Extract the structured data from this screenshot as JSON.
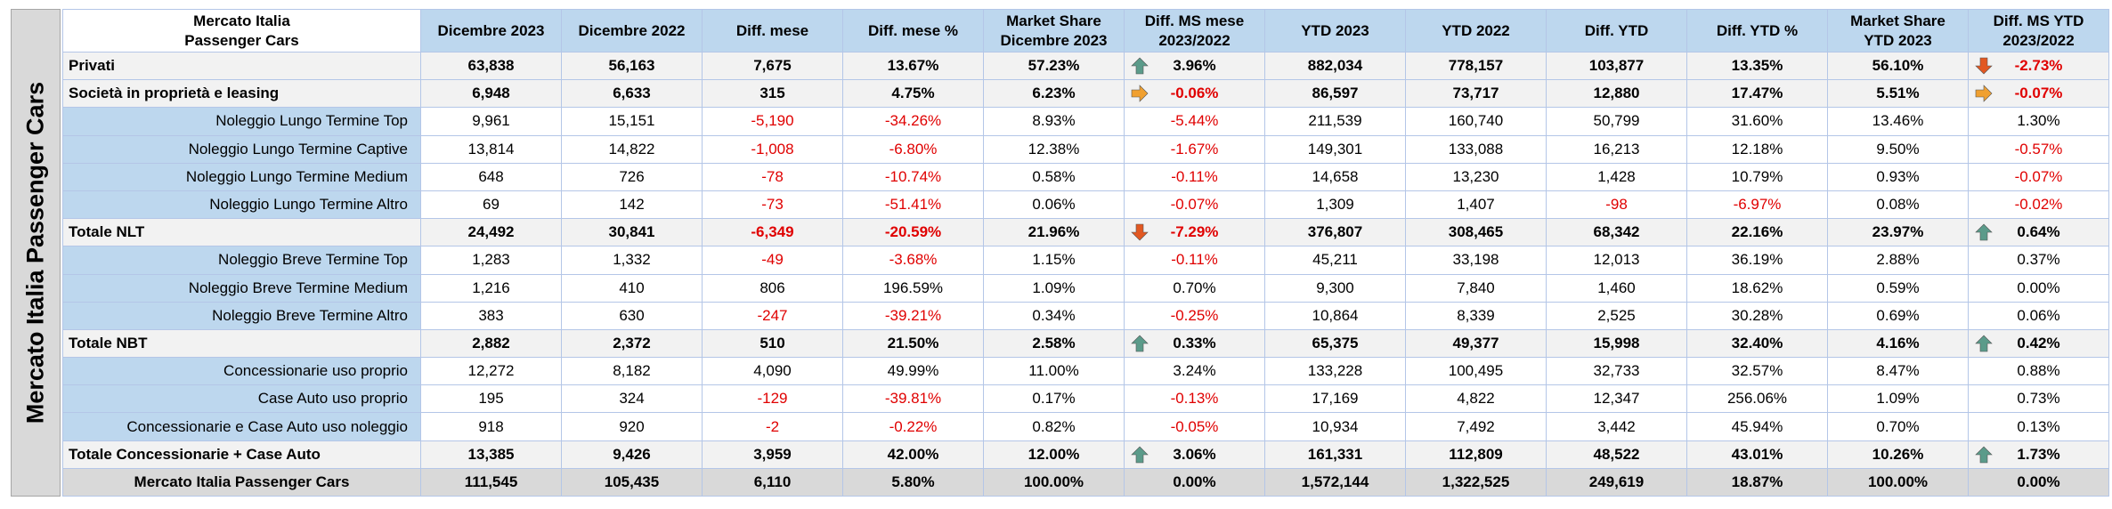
{
  "side_title": "Mercato Italia Passenger Cars",
  "header": {
    "title_line1": "Mercato Italia",
    "title_line2": "Passenger Cars",
    "columns": [
      [
        "Dicembre 2023"
      ],
      [
        "Dicembre 2022"
      ],
      [
        "Diff. mese"
      ],
      [
        "Diff. mese %"
      ],
      [
        "Market Share",
        "Dicembre 2023"
      ],
      [
        "Diff. MS mese",
        "2023/2022"
      ],
      [
        "YTD 2023"
      ],
      [
        "YTD 2022"
      ],
      [
        "Diff. YTD"
      ],
      [
        "Diff. YTD %"
      ],
      [
        "Market Share",
        "YTD 2023"
      ],
      [
        "Diff. MS YTD",
        "2023/2022"
      ]
    ]
  },
  "colors": {
    "header_bg": "#bdd7ee",
    "negative": "#e00000",
    "arrow_up": "#5b9b8a",
    "arrow_down": "#e25822",
    "arrow_right": "#f0a030"
  },
  "rows": [
    {
      "label": "Privati",
      "type": "total",
      "arrow_ms": "up-arrow-icon",
      "arrow_ytd": "down-arrow-icon",
      "values": [
        "63,838",
        "56,163",
        "7,675",
        "13.67%",
        "57.23%",
        "3.96%",
        "882,034",
        "778,157",
        "103,877",
        "13.35%",
        "56.10%",
        "-2.73%"
      ]
    },
    {
      "label": "Società in proprietà e leasing",
      "type": "total",
      "arrow_ms": "right-arrow-icon",
      "arrow_ytd": "right-arrow-icon",
      "values": [
        "6,948",
        "6,633",
        "315",
        "4.75%",
        "6.23%",
        "-0.06%",
        "86,597",
        "73,717",
        "12,880",
        "17.47%",
        "5.51%",
        "-0.07%"
      ]
    },
    {
      "label": "Noleggio Lungo Termine Top",
      "type": "sub",
      "values": [
        "9,961",
        "15,151",
        "-5,190",
        "-34.26%",
        "8.93%",
        "-5.44%",
        "211,539",
        "160,740",
        "50,799",
        "31.60%",
        "13.46%",
        "1.30%"
      ]
    },
    {
      "label": "Noleggio Lungo Termine Captive",
      "type": "sub",
      "values": [
        "13,814",
        "14,822",
        "-1,008",
        "-6.80%",
        "12.38%",
        "-1.67%",
        "149,301",
        "133,088",
        "16,213",
        "12.18%",
        "9.50%",
        "-0.57%"
      ]
    },
    {
      "label": "Noleggio Lungo Termine Medium",
      "type": "sub",
      "values": [
        "648",
        "726",
        "-78",
        "-10.74%",
        "0.58%",
        "-0.11%",
        "14,658",
        "13,230",
        "1,428",
        "10.79%",
        "0.93%",
        "-0.07%"
      ]
    },
    {
      "label": "Noleggio Lungo Termine Altro",
      "type": "sub",
      "values": [
        "69",
        "142",
        "-73",
        "-51.41%",
        "0.06%",
        "-0.07%",
        "1,309",
        "1,407",
        "-98",
        "-6.97%",
        "0.08%",
        "-0.02%"
      ]
    },
    {
      "label": "Totale NLT",
      "type": "total",
      "arrow_ms": "down-arrow-icon",
      "arrow_ytd": "up-arrow-icon",
      "values": [
        "24,492",
        "30,841",
        "-6,349",
        "-20.59%",
        "21.96%",
        "-7.29%",
        "376,807",
        "308,465",
        "68,342",
        "22.16%",
        "23.97%",
        "0.64%"
      ]
    },
    {
      "label": "Noleggio Breve Termine Top",
      "type": "sub",
      "values": [
        "1,283",
        "1,332",
        "-49",
        "-3.68%",
        "1.15%",
        "-0.11%",
        "45,211",
        "33,198",
        "12,013",
        "36.19%",
        "2.88%",
        "0.37%"
      ]
    },
    {
      "label": "Noleggio Breve Termine Medium",
      "type": "sub",
      "values": [
        "1,216",
        "410",
        "806",
        "196.59%",
        "1.09%",
        "0.70%",
        "9,300",
        "7,840",
        "1,460",
        "18.62%",
        "0.59%",
        "0.00%"
      ]
    },
    {
      "label": "Noleggio Breve Termine Altro",
      "type": "sub",
      "values": [
        "383",
        "630",
        "-247",
        "-39.21%",
        "0.34%",
        "-0.25%",
        "10,864",
        "8,339",
        "2,525",
        "30.28%",
        "0.69%",
        "0.06%"
      ]
    },
    {
      "label": "Totale NBT",
      "type": "total",
      "arrow_ms": "up-arrow-icon",
      "arrow_ytd": "up-arrow-icon",
      "values": [
        "2,882",
        "2,372",
        "510",
        "21.50%",
        "2.58%",
        "0.33%",
        "65,375",
        "49,377",
        "15,998",
        "32.40%",
        "4.16%",
        "0.42%"
      ]
    },
    {
      "label": "Concessionarie uso proprio",
      "type": "sub",
      "values": [
        "12,272",
        "8,182",
        "4,090",
        "49.99%",
        "11.00%",
        "3.24%",
        "133,228",
        "100,495",
        "32,733",
        "32.57%",
        "8.47%",
        "0.88%"
      ]
    },
    {
      "label": "Case Auto uso proprio",
      "type": "sub",
      "values": [
        "195",
        "324",
        "-129",
        "-39.81%",
        "0.17%",
        "-0.13%",
        "17,169",
        "4,822",
        "12,347",
        "256.06%",
        "1.09%",
        "0.73%"
      ]
    },
    {
      "label": "Concessionarie e Case Auto uso noleggio",
      "type": "sub",
      "values": [
        "918",
        "920",
        "-2",
        "-0.22%",
        "0.82%",
        "-0.05%",
        "10,934",
        "7,492",
        "3,442",
        "45.94%",
        "0.70%",
        "0.13%"
      ]
    },
    {
      "label": "Totale Concessionarie + Case Auto",
      "type": "total",
      "arrow_ms": "up-arrow-icon",
      "arrow_ytd": "up-arrow-icon",
      "values": [
        "13,385",
        "9,426",
        "3,959",
        "42.00%",
        "12.00%",
        "3.06%",
        "161,331",
        "112,809",
        "48,522",
        "43.01%",
        "10.26%",
        "1.73%"
      ]
    },
    {
      "label": "Mercato Italia Passenger Cars",
      "type": "grand",
      "values": [
        "111,545",
        "105,435",
        "6,110",
        "5.80%",
        "100.00%",
        "0.00%",
        "1,572,144",
        "1,322,525",
        "249,619",
        "18.87%",
        "100.00%",
        "0.00%"
      ]
    }
  ]
}
